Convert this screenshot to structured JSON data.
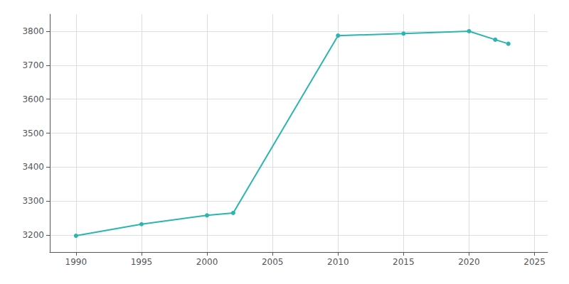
{
  "chart_data": {
    "type": "line",
    "x": [
      1990,
      1995,
      2000,
      2002,
      2010,
      2015,
      2020,
      2022,
      2023
    ],
    "values": [
      3198,
      3232,
      3258,
      3265,
      3787,
      3793,
      3800,
      3775,
      3763
    ],
    "color": "#2ab5b0",
    "marker": "circle",
    "xlim": [
      1988,
      2026
    ],
    "xticks": [
      1990,
      1995,
      2000,
      2005,
      2010,
      2015,
      2020,
      2025
    ],
    "ylim": [
      3150,
      3850
    ],
    "yticks": [
      3200,
      3300,
      3400,
      3500,
      3600,
      3700,
      3800
    ],
    "grid": true
  }
}
